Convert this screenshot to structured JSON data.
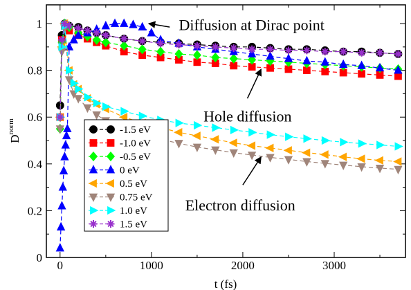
{
  "chart_data": {
    "type": "line",
    "xlabel": "t (fs)",
    "ylabel_main": "D",
    "ylabel_sup": "norm",
    "xlim": [
      -150,
      3780
    ],
    "ylim": [
      0,
      1.08
    ],
    "xticks": [
      0,
      1000,
      2000,
      3000
    ],
    "yticks": [
      0,
      0.2,
      0.4,
      0.6,
      0.8,
      1.0
    ],
    "xtick_labels": [
      "0",
      "1000",
      "2000",
      "3000"
    ],
    "ytick_labels": [
      "0",
      "0.2",
      "0.4",
      "0.6",
      "0.8",
      "1"
    ],
    "annotations": [
      {
        "text": "Diffusion at Dirac point",
        "at": [
          1300,
          0.995
        ],
        "arrow_to": [
          970,
          1.0
        ],
        "arrow_from": [
          1200,
          0.985
        ]
      },
      {
        "text": "Hole diffusion",
        "at": [
          1570,
          0.605
        ],
        "arrow_to": [
          2200,
          0.805
        ],
        "arrow_from": [
          2050,
          0.68
        ]
      },
      {
        "text": "Electron diffusion",
        "at": [
          1370,
          0.225
        ],
        "arrow_to": [
          2200,
          0.43
        ],
        "arrow_from": [
          2000,
          0.31
        ]
      }
    ],
    "series": [
      {
        "name": "-1.5 eV",
        "color": "#000000",
        "marker": "circle",
        "x": [
          0,
          20,
          50,
          100,
          200,
          300,
          400,
          500,
          700,
          900,
          1100,
          1300,
          1500,
          1700,
          1900,
          2100,
          2300,
          2500,
          2700,
          2900,
          3100,
          3300,
          3500,
          3700
        ],
        "y": [
          0.65,
          0.95,
          1.0,
          0.99,
          0.985,
          0.97,
          0.96,
          0.95,
          0.935,
          0.925,
          0.92,
          0.915,
          0.91,
          0.905,
          0.9,
          0.9,
          0.895,
          0.89,
          0.89,
          0.885,
          0.88,
          0.88,
          0.875,
          0.87
        ]
      },
      {
        "name": "-1.0 eV",
        "color": "#ff0000",
        "marker": "square",
        "x": [
          0,
          20,
          50,
          100,
          200,
          300,
          400,
          500,
          700,
          900,
          1100,
          1300,
          1500,
          1700,
          1900,
          2100,
          2300,
          2500,
          2700,
          2900,
          3100,
          3300,
          3500,
          3700
        ],
        "y": [
          0.6,
          0.93,
          0.99,
          0.97,
          0.95,
          0.935,
          0.92,
          0.905,
          0.88,
          0.865,
          0.855,
          0.845,
          0.835,
          0.83,
          0.82,
          0.815,
          0.81,
          0.805,
          0.8,
          0.795,
          0.79,
          0.785,
          0.78,
          0.775
        ]
      },
      {
        "name": "-0.5 eV",
        "color": "#00ff00",
        "marker": "diamond",
        "x": [
          0,
          20,
          50,
          100,
          200,
          300,
          400,
          500,
          700,
          900,
          1100,
          1300,
          1500,
          1700,
          1900,
          2100,
          2300,
          2500,
          2700,
          2900,
          3100,
          3300,
          3500,
          3700
        ],
        "y": [
          0.55,
          0.92,
          1.0,
          0.985,
          0.96,
          0.945,
          0.93,
          0.92,
          0.905,
          0.89,
          0.88,
          0.87,
          0.865,
          0.855,
          0.85,
          0.845,
          0.84,
          0.835,
          0.83,
          0.825,
          0.82,
          0.815,
          0.81,
          0.805
        ]
      },
      {
        "name": "0 eV",
        "color": "#0000ff",
        "marker": "triangle-up",
        "x": [
          0,
          10,
          20,
          30,
          40,
          50,
          60,
          70,
          80,
          100,
          150,
          200,
          300,
          400,
          500,
          600,
          700,
          800,
          900,
          1000,
          1100,
          1300,
          1500,
          1700,
          1900,
          2100,
          2300,
          2500,
          2700,
          2900,
          3100,
          3300,
          3500,
          3700
        ],
        "y": [
          0.04,
          0.13,
          0.22,
          0.3,
          0.37,
          0.43,
          0.48,
          0.52,
          0.55,
          0.9,
          0.93,
          0.95,
          0.96,
          0.975,
          0.99,
          1.0,
          1.0,
          0.995,
          0.985,
          0.96,
          0.93,
          0.915,
          0.9,
          0.89,
          0.88,
          0.87,
          0.86,
          0.85,
          0.84,
          0.835,
          0.825,
          0.82,
          0.81,
          0.8
        ]
      },
      {
        "name": "0.5 eV",
        "color": "#ffa500",
        "marker": "triangle-left",
        "x": [
          0,
          20,
          50,
          100,
          150,
          200,
          300,
          400,
          500,
          700,
          900,
          1100,
          1300,
          1500,
          1700,
          1900,
          2100,
          2300,
          2500,
          2700,
          2900,
          3100,
          3300,
          3500,
          3700
        ],
        "y": [
          0.6,
          0.9,
          1.0,
          0.8,
          0.74,
          0.72,
          0.68,
          0.655,
          0.635,
          0.6,
          0.575,
          0.555,
          0.535,
          0.52,
          0.505,
          0.49,
          0.478,
          0.468,
          0.458,
          0.448,
          0.44,
          0.43,
          0.422,
          0.415,
          0.41
        ]
      },
      {
        "name": "0.75 eV",
        "color": "#a0857a",
        "marker": "triangle-down",
        "x": [
          0,
          20,
          50,
          100,
          150,
          200,
          300,
          400,
          500,
          700,
          900,
          1100,
          1300,
          1500,
          1700,
          1900,
          2100,
          2300,
          2500,
          2700,
          2900,
          3100,
          3300,
          3500,
          3700
        ],
        "y": [
          0.55,
          0.88,
          0.98,
          0.76,
          0.7,
          0.68,
          0.64,
          0.61,
          0.585,
          0.55,
          0.525,
          0.505,
          0.488,
          0.472,
          0.46,
          0.448,
          0.438,
          0.428,
          0.419,
          0.41,
          0.402,
          0.395,
          0.388,
          0.382,
          0.377
        ]
      },
      {
        "name": "1.0 eV",
        "color": "#00ffff",
        "marker": "triangle-right",
        "x": [
          0,
          20,
          50,
          100,
          150,
          200,
          300,
          400,
          500,
          700,
          900,
          1100,
          1300,
          1500,
          1700,
          1900,
          2100,
          2300,
          2500,
          2700,
          2900,
          3100,
          3300,
          3500,
          3700
        ],
        "y": [
          0.6,
          0.9,
          0.99,
          0.8,
          0.745,
          0.72,
          0.685,
          0.66,
          0.645,
          0.625,
          0.605,
          0.588,
          0.575,
          0.565,
          0.555,
          0.545,
          0.535,
          0.525,
          0.516,
          0.508,
          0.5,
          0.493,
          0.487,
          0.481,
          0.475
        ]
      },
      {
        "name": "1.5 eV",
        "color": "#9932cc",
        "marker": "star",
        "x": [
          0,
          20,
          50,
          100,
          200,
          300,
          400,
          500,
          700,
          900,
          1100,
          1300,
          1500,
          1700,
          1900,
          2100,
          2300,
          2500,
          2700,
          2900,
          3100,
          3300,
          3500,
          3700
        ],
        "y": [
          0.6,
          0.93,
          1.0,
          0.99,
          0.98,
          0.97,
          0.96,
          0.95,
          0.935,
          0.925,
          0.915,
          0.91,
          0.905,
          0.9,
          0.895,
          0.89,
          0.89,
          0.885,
          0.885,
          0.88,
          0.88,
          0.875,
          0.875,
          0.87
        ]
      }
    ]
  }
}
